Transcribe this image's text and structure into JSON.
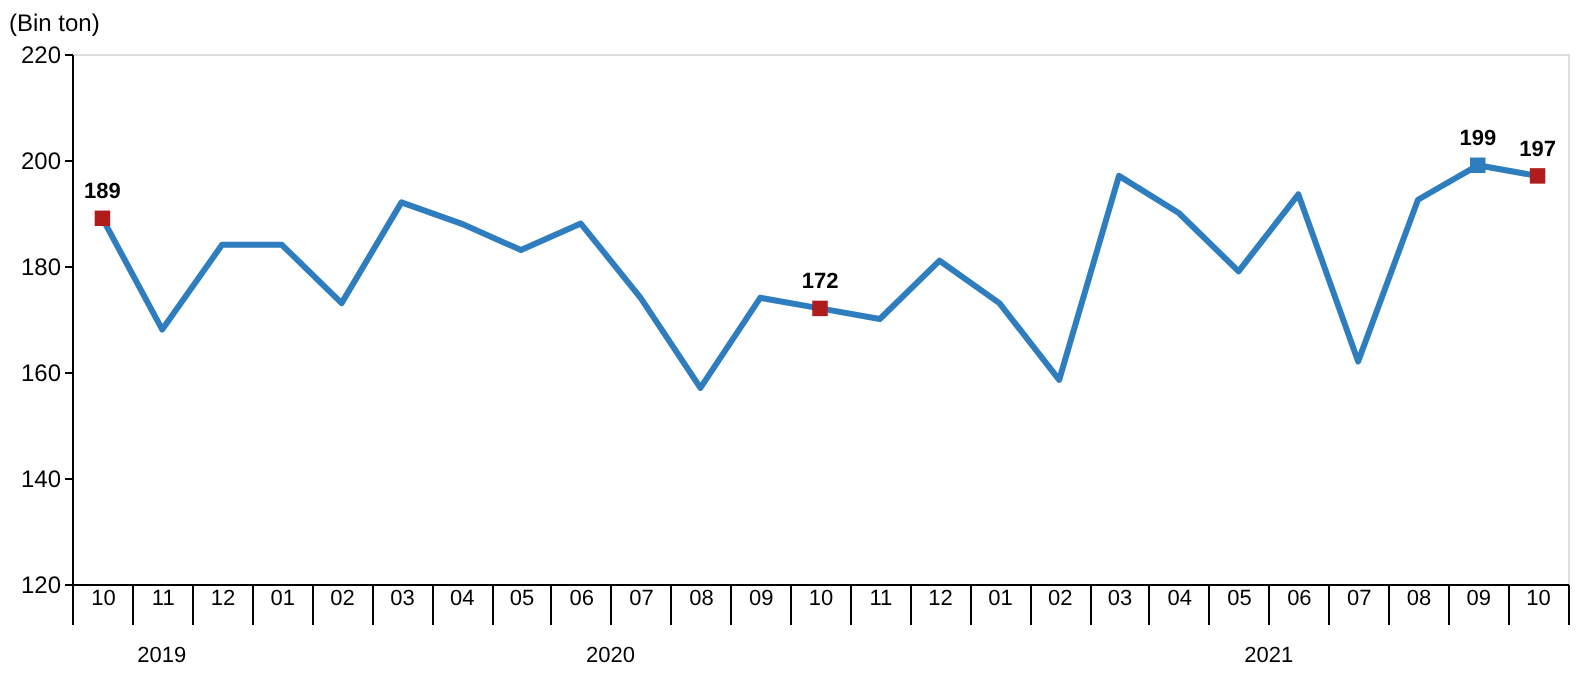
{
  "chart_data": {
    "type": "line",
    "ylabel": "(Bin ton)",
    "x": [
      "2019-10",
      "2019-11",
      "2019-12",
      "2020-01",
      "2020-02",
      "2020-03",
      "2020-04",
      "2020-05",
      "2020-06",
      "2020-07",
      "2020-08",
      "2020-09",
      "2020-10",
      "2020-11",
      "2020-12",
      "2021-01",
      "2021-02",
      "2021-03",
      "2021-04",
      "2021-05",
      "2021-06",
      "2021-07",
      "2021-08",
      "2021-09",
      "2021-10"
    ],
    "series": [
      {
        "color": "#2e7dbf",
        "marker": "none",
        "values": [
          189,
          168,
          184,
          184,
          173,
          192,
          188,
          183,
          188,
          174,
          157,
          174,
          172,
          170,
          181,
          173,
          158.5,
          197,
          190,
          179,
          193.5,
          162,
          192.5,
          199,
          197
        ]
      },
      {
        "type": "scatter",
        "marker": "square",
        "data_labels": true,
        "x": [
          "2019-10",
          "2020-10",
          "2021-09",
          "2021-10"
        ],
        "values": [
          189,
          172,
          199,
          197
        ],
        "colors": [
          "#b01c1c",
          "#b01c1c",
          "#2e7dbf",
          "#b01c1c"
        ]
      }
    ],
    "line_style": "solid",
    "grid": false,
    "xticks": [
      {
        "value": "2019-10",
        "label": "10"
      },
      {
        "value": "2019-11",
        "label": "11"
      },
      {
        "value": "2019-12",
        "label": "12"
      },
      {
        "value": "2020-01",
        "label": "01"
      },
      {
        "value": "2020-02",
        "label": "02"
      },
      {
        "value": "2020-03",
        "label": "03"
      },
      {
        "value": "2020-04",
        "label": "04"
      },
      {
        "value": "2020-05",
        "label": "05"
      },
      {
        "value": "2020-06",
        "label": "06"
      },
      {
        "value": "2020-07",
        "label": "07"
      },
      {
        "value": "2020-08",
        "label": "08"
      },
      {
        "value": "2020-09",
        "label": "09"
      },
      {
        "value": "2020-10",
        "label": "10"
      },
      {
        "value": "2020-11",
        "label": "11"
      },
      {
        "value": "2020-12",
        "label": "12"
      },
      {
        "value": "2021-01",
        "label": "01"
      },
      {
        "value": "2021-02",
        "label": "02"
      },
      {
        "value": "2021-03",
        "label": "03"
      },
      {
        "value": "2021-04",
        "label": "04"
      },
      {
        "value": "2021-05",
        "label": "05"
      },
      {
        "value": "2021-06",
        "label": "06"
      },
      {
        "value": "2021-07",
        "label": "07"
      },
      {
        "value": "2021-08",
        "label": "08"
      },
      {
        "value": "2021-09",
        "label": "09"
      },
      {
        "value": "2021-10",
        "label": "10"
      }
    ],
    "xlim": [
      "2019-09-15",
      "2021-10-16"
    ],
    "ylim": [
      120,
      220
    ],
    "yticks": [
      120,
      140,
      160,
      180,
      200,
      220
    ],
    "annotations": [
      "2019",
      "2020",
      "2021"
    ]
  }
}
